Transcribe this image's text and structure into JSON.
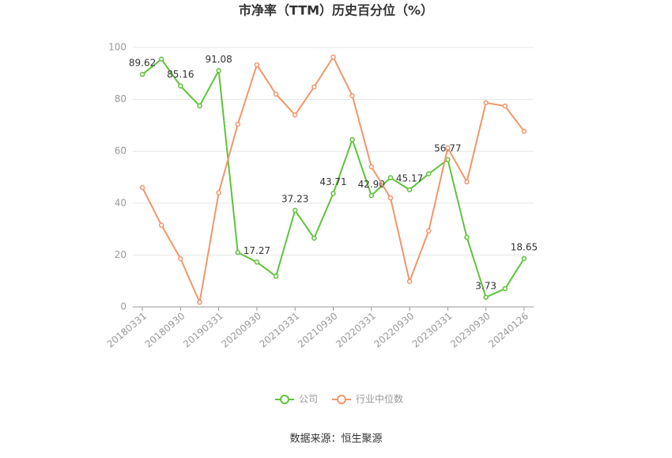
{
  "chart_data": {
    "type": "line",
    "title": "市净率（TTM）历史百分位（%）",
    "categories": [
      "20180331",
      null,
      "20180930",
      null,
      "20190331",
      null,
      "20200930",
      null,
      "20210331",
      null,
      "20210930",
      null,
      "20220331",
      null,
      "20220930",
      null,
      "20230331",
      null,
      "20230930",
      null,
      "20240126"
    ],
    "series": [
      {
        "name": "公司",
        "color": "#5ec43a",
        "values": [
          89.62,
          95.5,
          85.16,
          77.5,
          91.08,
          21,
          17.27,
          11.8,
          37.23,
          26.5,
          43.71,
          64.5,
          42.9,
          49.8,
          45.17,
          51.3,
          56.77,
          26.8,
          3.73,
          7,
          18.65
        ],
        "value_labels": [
          "89.62",
          null,
          "85.16",
          null,
          "91.08",
          null,
          "17.27",
          null,
          "37.23",
          null,
          "43.71",
          null,
          "42.90",
          null,
          "45.17",
          null,
          "56.77",
          null,
          "3.73",
          null,
          "18.65"
        ]
      },
      {
        "name": "行业中位数",
        "color": "#f4956a",
        "values": [
          46,
          31.5,
          18.6,
          1.8,
          44,
          70.4,
          93.3,
          82,
          74,
          84.8,
          96.3,
          81.4,
          54,
          42,
          9.8,
          29.3,
          61.3,
          48.2,
          78.7,
          77.4,
          67.7
        ]
      }
    ],
    "ylim": [
      0,
      100
    ],
    "yticks": [
      0,
      20,
      40,
      60,
      80,
      100
    ],
    "grid": true,
    "legend": "bottom",
    "source": "数据来源：恒生聚源"
  }
}
